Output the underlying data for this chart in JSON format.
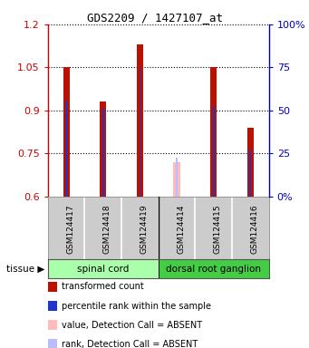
{
  "title": "GDS2209 / 1427107_at",
  "samples": [
    "GSM124417",
    "GSM124418",
    "GSM124419",
    "GSM124414",
    "GSM124415",
    "GSM124416"
  ],
  "red_values": [
    1.05,
    0.93,
    1.13,
    null,
    1.05,
    0.84
  ],
  "blue_values": [
    0.935,
    0.905,
    1.05,
    null,
    0.915,
    0.765
  ],
  "absent_red_values": [
    null,
    null,
    null,
    0.72,
    null,
    null
  ],
  "absent_blue_values": [
    null,
    null,
    null,
    0.735,
    null,
    null
  ],
  "ylim": [
    0.6,
    1.2
  ],
  "yticks_left": [
    0.6,
    0.75,
    0.9,
    1.05,
    1.2
  ],
  "ytick_labels_left": [
    "0.6",
    "0.75",
    "0.9",
    "1.05",
    "1.2"
  ],
  "ytick_labels_right": [
    "0%",
    "25",
    "50",
    "75",
    "100%"
  ],
  "left_axis_color": "#cc0000",
  "right_axis_color": "#0000bb",
  "red_bar_color": "#bb1100",
  "red_bar_width": 0.18,
  "blue_bar_color": "#2233cc",
  "blue_bar_width": 0.045,
  "absent_red_color": "#ffbbbb",
  "absent_blue_color": "#bbbbff",
  "bg_color": "#ffffff",
  "xlabel_bg": "#cccccc",
  "tissue_spinal_color": "#aaffaa",
  "tissue_drg_color": "#44cc44",
  "legend_items": [
    {
      "color": "#bb1100",
      "label": "transformed count"
    },
    {
      "color": "#2233cc",
      "label": "percentile rank within the sample"
    },
    {
      "color": "#ffbbbb",
      "label": "value, Detection Call = ABSENT"
    },
    {
      "color": "#bbbbff",
      "label": "rank, Detection Call = ABSENT"
    }
  ]
}
